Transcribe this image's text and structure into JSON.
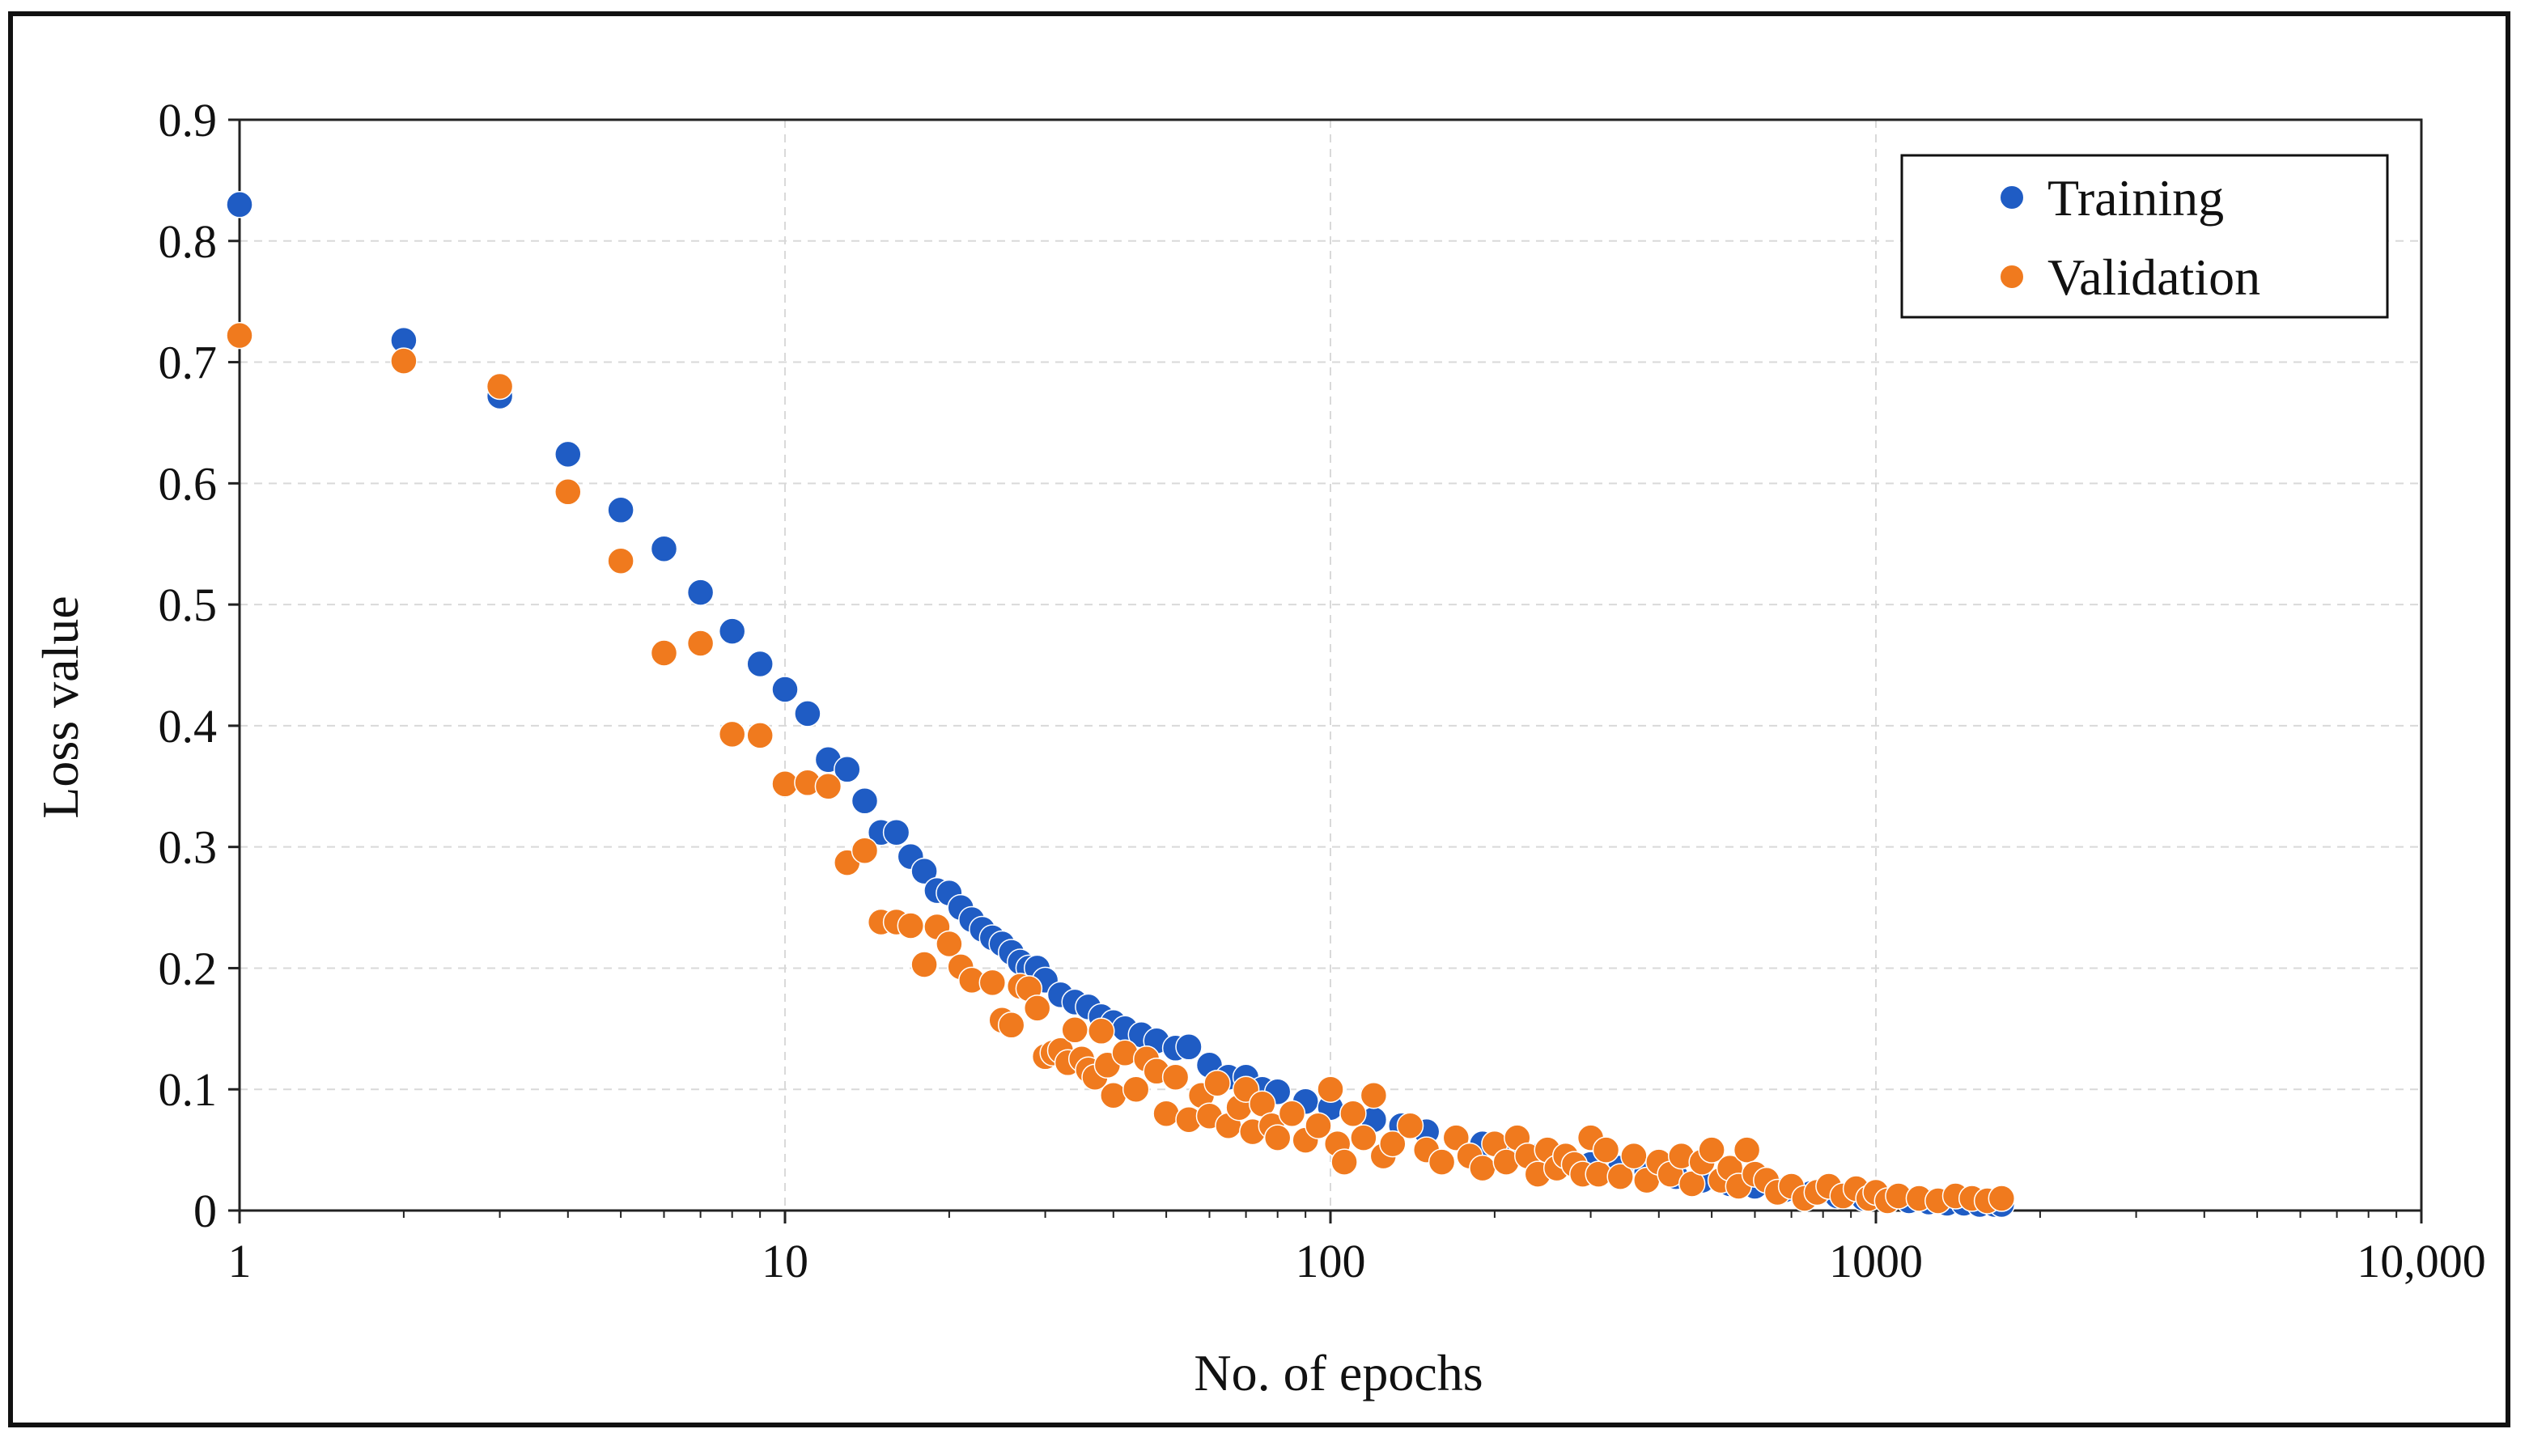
{
  "chart_data": {
    "type": "scatter",
    "title": "",
    "xlabel": "No. of epochs",
    "ylabel": "Loss value",
    "xscale": "log",
    "xlim": [
      1,
      10000
    ],
    "ylim": [
      0,
      0.9
    ],
    "grid": true,
    "legend_position": "top-right",
    "x_tick_values": [
      1,
      10,
      100,
      1000,
      10000
    ],
    "x_tick_labels": [
      "1",
      "10",
      "100",
      "1000",
      "10,000"
    ],
    "y_tick_values": [
      0,
      0.1,
      0.2,
      0.3,
      0.4,
      0.5,
      0.6,
      0.7,
      0.8,
      0.9
    ],
    "y_tick_labels": [
      "0",
      "0.1",
      "0.2",
      "0.3",
      "0.4",
      "0.5",
      "0.6",
      "0.7",
      "0.8",
      "0.9"
    ],
    "series": [
      {
        "name": "Training",
        "color": "#1f5cc4",
        "x": [
          1,
          2,
          3,
          4,
          5,
          6,
          7,
          8,
          9,
          10,
          11,
          12,
          13,
          14,
          15,
          16,
          17,
          18,
          19,
          20,
          21,
          22,
          23,
          24,
          25,
          26,
          27,
          28,
          29,
          30,
          32,
          34,
          36,
          38,
          40,
          42,
          45,
          48,
          52,
          55,
          60,
          65,
          70,
          75,
          80,
          90,
          100,
          110,
          120,
          135,
          150,
          170,
          190,
          210,
          240,
          270,
          300,
          340,
          380,
          430,
          480,
          540,
          600,
          680,
          760,
          850,
          950,
          1050,
          1150,
          1250,
          1350,
          1450,
          1550,
          1650,
          1700
        ],
        "y": [
          0.83,
          0.718,
          0.672,
          0.624,
          0.578,
          0.546,
          0.51,
          0.478,
          0.451,
          0.43,
          0.41,
          0.372,
          0.364,
          0.338,
          0.312,
          0.312,
          0.292,
          0.28,
          0.264,
          0.262,
          0.25,
          0.24,
          0.232,
          0.225,
          0.22,
          0.213,
          0.205,
          0.2,
          0.2,
          0.19,
          0.178,
          0.172,
          0.168,
          0.16,
          0.155,
          0.15,
          0.145,
          0.14,
          0.134,
          0.135,
          0.12,
          0.11,
          0.11,
          0.1,
          0.098,
          0.09,
          0.085,
          0.08,
          0.075,
          0.07,
          0.065,
          0.06,
          0.055,
          0.05,
          0.045,
          0.042,
          0.038,
          0.035,
          0.032,
          0.028,
          0.025,
          0.022,
          0.02,
          0.017,
          0.014,
          0.012,
          0.01,
          0.009,
          0.008,
          0.007,
          0.006,
          0.006,
          0.005,
          0.005,
          0.005
        ]
      },
      {
        "name": "Validation",
        "color": "#f07a1e",
        "x": [
          1,
          2,
          3,
          4,
          5,
          6,
          7,
          8,
          9,
          10,
          11,
          12,
          13,
          14,
          15,
          16,
          17,
          18,
          19,
          20,
          21,
          22,
          24,
          25,
          26,
          27,
          28,
          29,
          30,
          31,
          32,
          33,
          34,
          35,
          36,
          37,
          38,
          39,
          40,
          42,
          44,
          46,
          48,
          50,
          52,
          55,
          58,
          60,
          62,
          65,
          68,
          70,
          72,
          75,
          78,
          80,
          85,
          90,
          95,
          100,
          103,
          106,
          110,
          115,
          120,
          125,
          130,
          140,
          150,
          160,
          170,
          180,
          190,
          200,
          210,
          220,
          230,
          240,
          250,
          260,
          270,
          280,
          290,
          300,
          310,
          320,
          340,
          360,
          380,
          400,
          420,
          440,
          460,
          480,
          500,
          520,
          540,
          560,
          580,
          600,
          630,
          660,
          700,
          740,
          780,
          820,
          870,
          920,
          970,
          1000,
          1050,
          1100,
          1200,
          1300,
          1400,
          1500,
          1600,
          1700
        ],
        "y": [
          0.722,
          0.701,
          0.68,
          0.593,
          0.536,
          0.46,
          0.468,
          0.393,
          0.392,
          0.352,
          0.353,
          0.35,
          0.287,
          0.297,
          0.238,
          0.238,
          0.235,
          0.203,
          0.234,
          0.22,
          0.201,
          0.19,
          0.188,
          0.157,
          0.153,
          0.185,
          0.183,
          0.167,
          0.127,
          0.13,
          0.132,
          0.122,
          0.149,
          0.125,
          0.116,
          0.11,
          0.148,
          0.12,
          0.095,
          0.13,
          0.1,
          0.125,
          0.115,
          0.08,
          0.11,
          0.075,
          0.095,
          0.078,
          0.105,
          0.07,
          0.085,
          0.1,
          0.065,
          0.088,
          0.07,
          0.06,
          0.08,
          0.058,
          0.07,
          0.1,
          0.055,
          0.04,
          0.08,
          0.06,
          0.095,
          0.045,
          0.055,
          0.07,
          0.05,
          0.04,
          0.06,
          0.045,
          0.035,
          0.055,
          0.04,
          0.06,
          0.045,
          0.03,
          0.05,
          0.035,
          0.045,
          0.038,
          0.03,
          0.06,
          0.03,
          0.05,
          0.028,
          0.045,
          0.025,
          0.04,
          0.03,
          0.045,
          0.022,
          0.04,
          0.05,
          0.025,
          0.035,
          0.02,
          0.05,
          0.03,
          0.025,
          0.015,
          0.02,
          0.01,
          0.015,
          0.02,
          0.012,
          0.018,
          0.01,
          0.015,
          0.008,
          0.012,
          0.01,
          0.008,
          0.012,
          0.01,
          0.008,
          0.01
        ]
      }
    ]
  }
}
